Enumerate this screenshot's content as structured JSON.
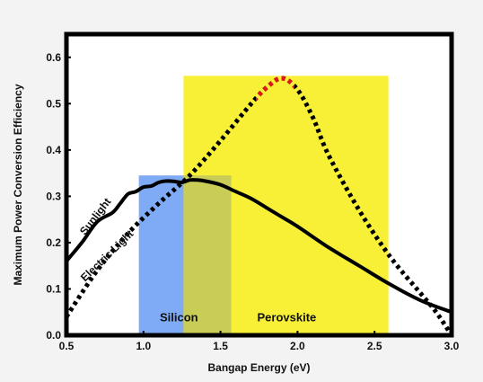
{
  "chart_data": {
    "type": "line",
    "xlabel": "Bangap Energy (eV)",
    "ylabel": "Maximum Power Conversion Efficiency",
    "xlim": [
      0.5,
      3.0
    ],
    "ylim": [
      0.0,
      0.65
    ],
    "x_ticks": [
      "0.5",
      "1.0",
      "1.5",
      "2.0",
      "2.5",
      "3.0"
    ],
    "y_ticks": [
      "0.0",
      "0.1",
      "0.2",
      "0.3",
      "0.4",
      "0.5",
      "0.6"
    ],
    "grid": false,
    "series": [
      {
        "name": "Sunlight",
        "style": "solid",
        "color": "#000000",
        "x": [
          0.5,
          0.6,
          0.7,
          0.8,
          0.85,
          0.9,
          0.95,
          1.0,
          1.05,
          1.1,
          1.15,
          1.2,
          1.25,
          1.3,
          1.35,
          1.4,
          1.5,
          1.6,
          1.7,
          1.8,
          1.9,
          2.0,
          2.2,
          2.4,
          2.6,
          2.8,
          3.0
        ],
        "y": [
          0.16,
          0.2,
          0.245,
          0.265,
          0.285,
          0.305,
          0.31,
          0.32,
          0.322,
          0.33,
          0.333,
          0.332,
          0.33,
          0.335,
          0.335,
          0.333,
          0.325,
          0.31,
          0.295,
          0.275,
          0.255,
          0.235,
          0.19,
          0.15,
          0.11,
          0.075,
          0.05
        ]
      },
      {
        "name": "Electric Light",
        "style": "dotted",
        "color": "#000000",
        "peak_color": "#e0161b",
        "x": [
          0.5,
          0.7,
          0.9,
          1.1,
          1.3,
          1.5,
          1.7,
          1.8,
          1.9,
          2.0,
          2.1,
          2.2,
          2.4,
          2.6,
          2.8,
          2.9,
          3.0
        ],
        "y": [
          0.04,
          0.14,
          0.22,
          0.285,
          0.345,
          0.42,
          0.5,
          0.535,
          0.555,
          0.53,
          0.47,
          0.39,
          0.27,
          0.17,
          0.09,
          0.05,
          0.0
        ]
      }
    ],
    "bands": [
      {
        "name": "Silicon",
        "x0": 0.97,
        "x1": 1.57,
        "y0": 0.0,
        "y1": 0.345,
        "color": "#7faaf5"
      },
      {
        "name": "Perovskite",
        "x0": 1.26,
        "x1": 2.59,
        "y0": 0.0,
        "y1": 0.56,
        "color": "#f8f036"
      }
    ],
    "overlap_color": "#c9cc56"
  }
}
